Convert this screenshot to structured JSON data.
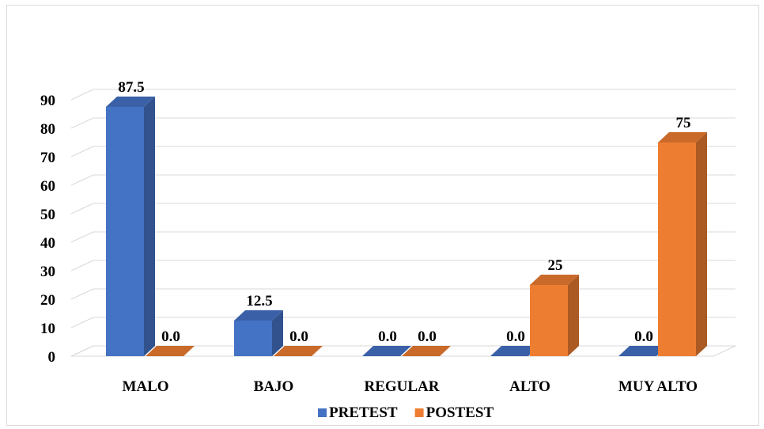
{
  "chart_data": {
    "type": "bar",
    "style": "3d-clustered-column",
    "categories": [
      "MALO",
      "BAJO",
      "REGULAR",
      "ALTO",
      "MUY ALTO"
    ],
    "series": [
      {
        "name": "PRETEST",
        "color": "#4472C4",
        "values": [
          87.5,
          12.5,
          0,
          0,
          0
        ],
        "labels": [
          "87.5",
          "12.5",
          "0.0",
          "0.0",
          "0.0"
        ]
      },
      {
        "name": "POSTEST",
        "color": "#ED7D31",
        "values": [
          0,
          0,
          0,
          25,
          75
        ],
        "labels": [
          "0.0",
          "0.0",
          "0.0",
          "25",
          "75"
        ]
      }
    ],
    "yticks": [
      "0",
      "10",
      "20",
      "30",
      "40",
      "50",
      "60",
      "70",
      "80",
      "90"
    ],
    "ylim": [
      0,
      90
    ],
    "grid": true,
    "legend_position": "bottom"
  }
}
